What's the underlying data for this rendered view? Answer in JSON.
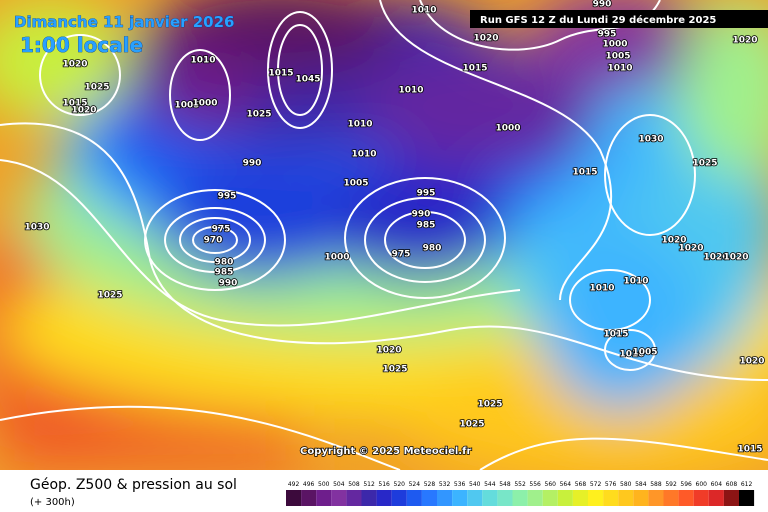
{
  "header": {
    "date": "Dimanche 11 janvier 2026",
    "time": "1:00 locale",
    "run": "Run GFS 12 Z du Lundi 29 décembre 2025"
  },
  "map": {
    "isobar_labels": [
      "1010",
      "1020",
      "990",
      "995",
      "1000",
      "1005",
      "1010",
      "1020",
      "1025",
      "1015",
      "1020",
      "1010",
      "1005",
      "1000",
      "1015",
      "1045",
      "1025",
      "1010",
      "1015",
      "1010",
      "1000",
      "1010",
      "990",
      "995",
      "1005",
      "995",
      "990",
      "985",
      "980",
      "975",
      "1000",
      "975",
      "970",
      "980",
      "985",
      "990",
      "1030",
      "1025",
      "1015",
      "1030",
      "1025",
      "1020",
      "1020",
      "1020",
      "1020",
      "1010",
      "1010",
      "1015",
      "1010",
      "1005",
      "1020",
      "1025",
      "1025",
      "1025",
      "1020",
      "1015",
      "1020"
    ],
    "copyright": "Copyright © 2025 Meteociel.fr"
  },
  "footer": {
    "title": "Géop. Z500 & pression au sol",
    "subtitle": "(+ 300h)"
  },
  "legend": {
    "labels": [
      492,
      496,
      500,
      504,
      508,
      512,
      516,
      520,
      524,
      528,
      532,
      536,
      540,
      544,
      548,
      552,
      556,
      560,
      564,
      568,
      572,
      576,
      580,
      584,
      588,
      592,
      596,
      600,
      604,
      608,
      612
    ],
    "colors": [
      "#3c0a3c",
      "#5a1464",
      "#6e1e8c",
      "#8232a0",
      "#6428a0",
      "#3c28aa",
      "#2828c8",
      "#1e3cdc",
      "#1e5af0",
      "#2878ff",
      "#3296ff",
      "#3cb4ff",
      "#50c8f0",
      "#64dcdc",
      "#78e6c8",
      "#8cf0aa",
      "#a0f08c",
      "#b4f064",
      "#c8f03c",
      "#e6f028",
      "#fff01e",
      "#ffdc1e",
      "#ffc81e",
      "#ffb41e",
      "#ff9628",
      "#ff7828",
      "#ff5a28",
      "#f03c28",
      "#dc2828",
      "#8c1414",
      "#000000"
    ]
  }
}
